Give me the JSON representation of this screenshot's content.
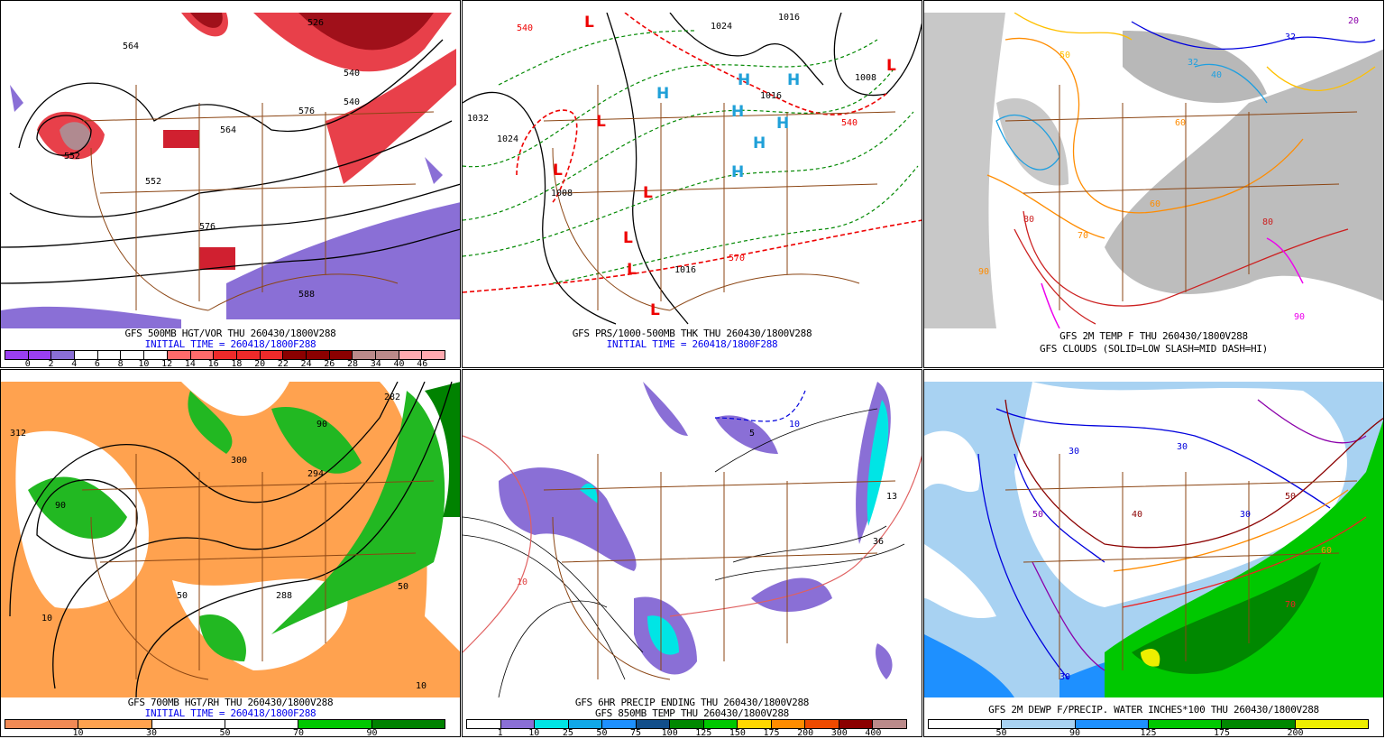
{
  "panels": [
    {
      "title": "GFS 500MB HGT/VOR THU 260430/1800V288",
      "subtitle": "INITIAL TIME = 260418/1800F288",
      "colorbar": {
        "colors": [
          "#9a3ff0",
          "#9a3ff0",
          "#8a6fd6",
          "#ffffff",
          "#ffffff",
          "#ffffff",
          "#ffffff",
          "#ff6b6b",
          "#ff6b6b",
          "#ee2a2a",
          "#ee2a2a",
          "#ee2a2a",
          "#8b0000",
          "#8b0000",
          "#8b0000",
          "#bb8a8a",
          "#bb8a8a",
          "#ffaab0",
          "#ffaab0"
        ],
        "labels": [
          "0",
          "2",
          "4",
          "6",
          "8",
          "10",
          "12",
          "14",
          "16",
          "18",
          "20",
          "22",
          "24",
          "26",
          "28",
          "34",
          "40",
          "46"
        ]
      },
      "contour_labels": [
        "526",
        "540",
        "552",
        "564",
        "564",
        "576",
        "576",
        "588",
        "540",
        "552"
      ]
    },
    {
      "title": "GFS PRS/1000-500MB THK THU 260430/1800V288",
      "subtitle": "INITIAL TIME = 260418/1800F288",
      "pressure_centers": [
        "H",
        "H",
        "H",
        "H",
        "H",
        "H",
        "H",
        "L",
        "L",
        "L",
        "L",
        "L",
        "L",
        "L",
        "L"
      ],
      "contour_labels": [
        "1032",
        "1024",
        "1024",
        "1016",
        "1016",
        "1008",
        "1008",
        "1016",
        "540",
        "540",
        "570"
      ]
    },
    {
      "title": "GFS 2M TEMP F THU 260430/1800V288",
      "subtitle": "GFS CLOUDS (SOLID=LOW SLASH=MID DASH=HI)",
      "contour_labels": [
        "20",
        "32",
        "32",
        "40",
        "50",
        "60",
        "60",
        "70",
        "80",
        "80",
        "90",
        "90"
      ]
    },
    {
      "title": "GFS 700MB HGT/RH THU 260430/1800V288",
      "subtitle": "INITIAL TIME = 260418/1800F288",
      "colorbar": {
        "colors": [
          "#f28a55",
          "#ffa24f",
          "#ffffff",
          "#ffffff",
          "#00c800",
          "#008200"
        ],
        "labels": [
          "10",
          "30",
          "50",
          "70",
          "90"
        ]
      },
      "contour_labels": [
        "312",
        "300",
        "294",
        "288",
        "282",
        "10",
        "50",
        "90",
        "90",
        "50",
        "10"
      ]
    },
    {
      "title": "GFS 6HR PRECIP ENDING THU 260430/1800V288",
      "subtitle": "GFS 850MB TEMP THU 260430/1800V288",
      "colorbar": {
        "colors": [
          "#ffffff",
          "#8a6fd6",
          "#00e5e5",
          "#11a8e8",
          "#1e90ff",
          "#124e8a",
          "#008800",
          "#00c800",
          "#ffd700",
          "#ff8c00",
          "#ee4a00",
          "#8b0000",
          "#bb8a8a"
        ],
        "labels": [
          "1",
          "10",
          "25",
          "50",
          "75",
          "100",
          "125",
          "150",
          "175",
          "200",
          "300",
          "400"
        ]
      },
      "contour_labels": [
        "10",
        "10",
        "5",
        "13",
        "36"
      ]
    },
    {
      "title": "GFS 2M DEWP F/PRECIP. WATER INCHES*100 THU 260430/1800V288",
      "subtitle": "",
      "colorbar": {
        "colors": [
          "#ffffff",
          "#a8d2f2",
          "#1e90ff",
          "#00c800",
          "#008800",
          "#eeee00"
        ],
        "labels": [
          "50",
          "90",
          "125",
          "175",
          "200"
        ]
      },
      "contour_labels": [
        "30",
        "30",
        "30",
        "30",
        "40",
        "50",
        "50",
        "60",
        "70"
      ]
    }
  ]
}
